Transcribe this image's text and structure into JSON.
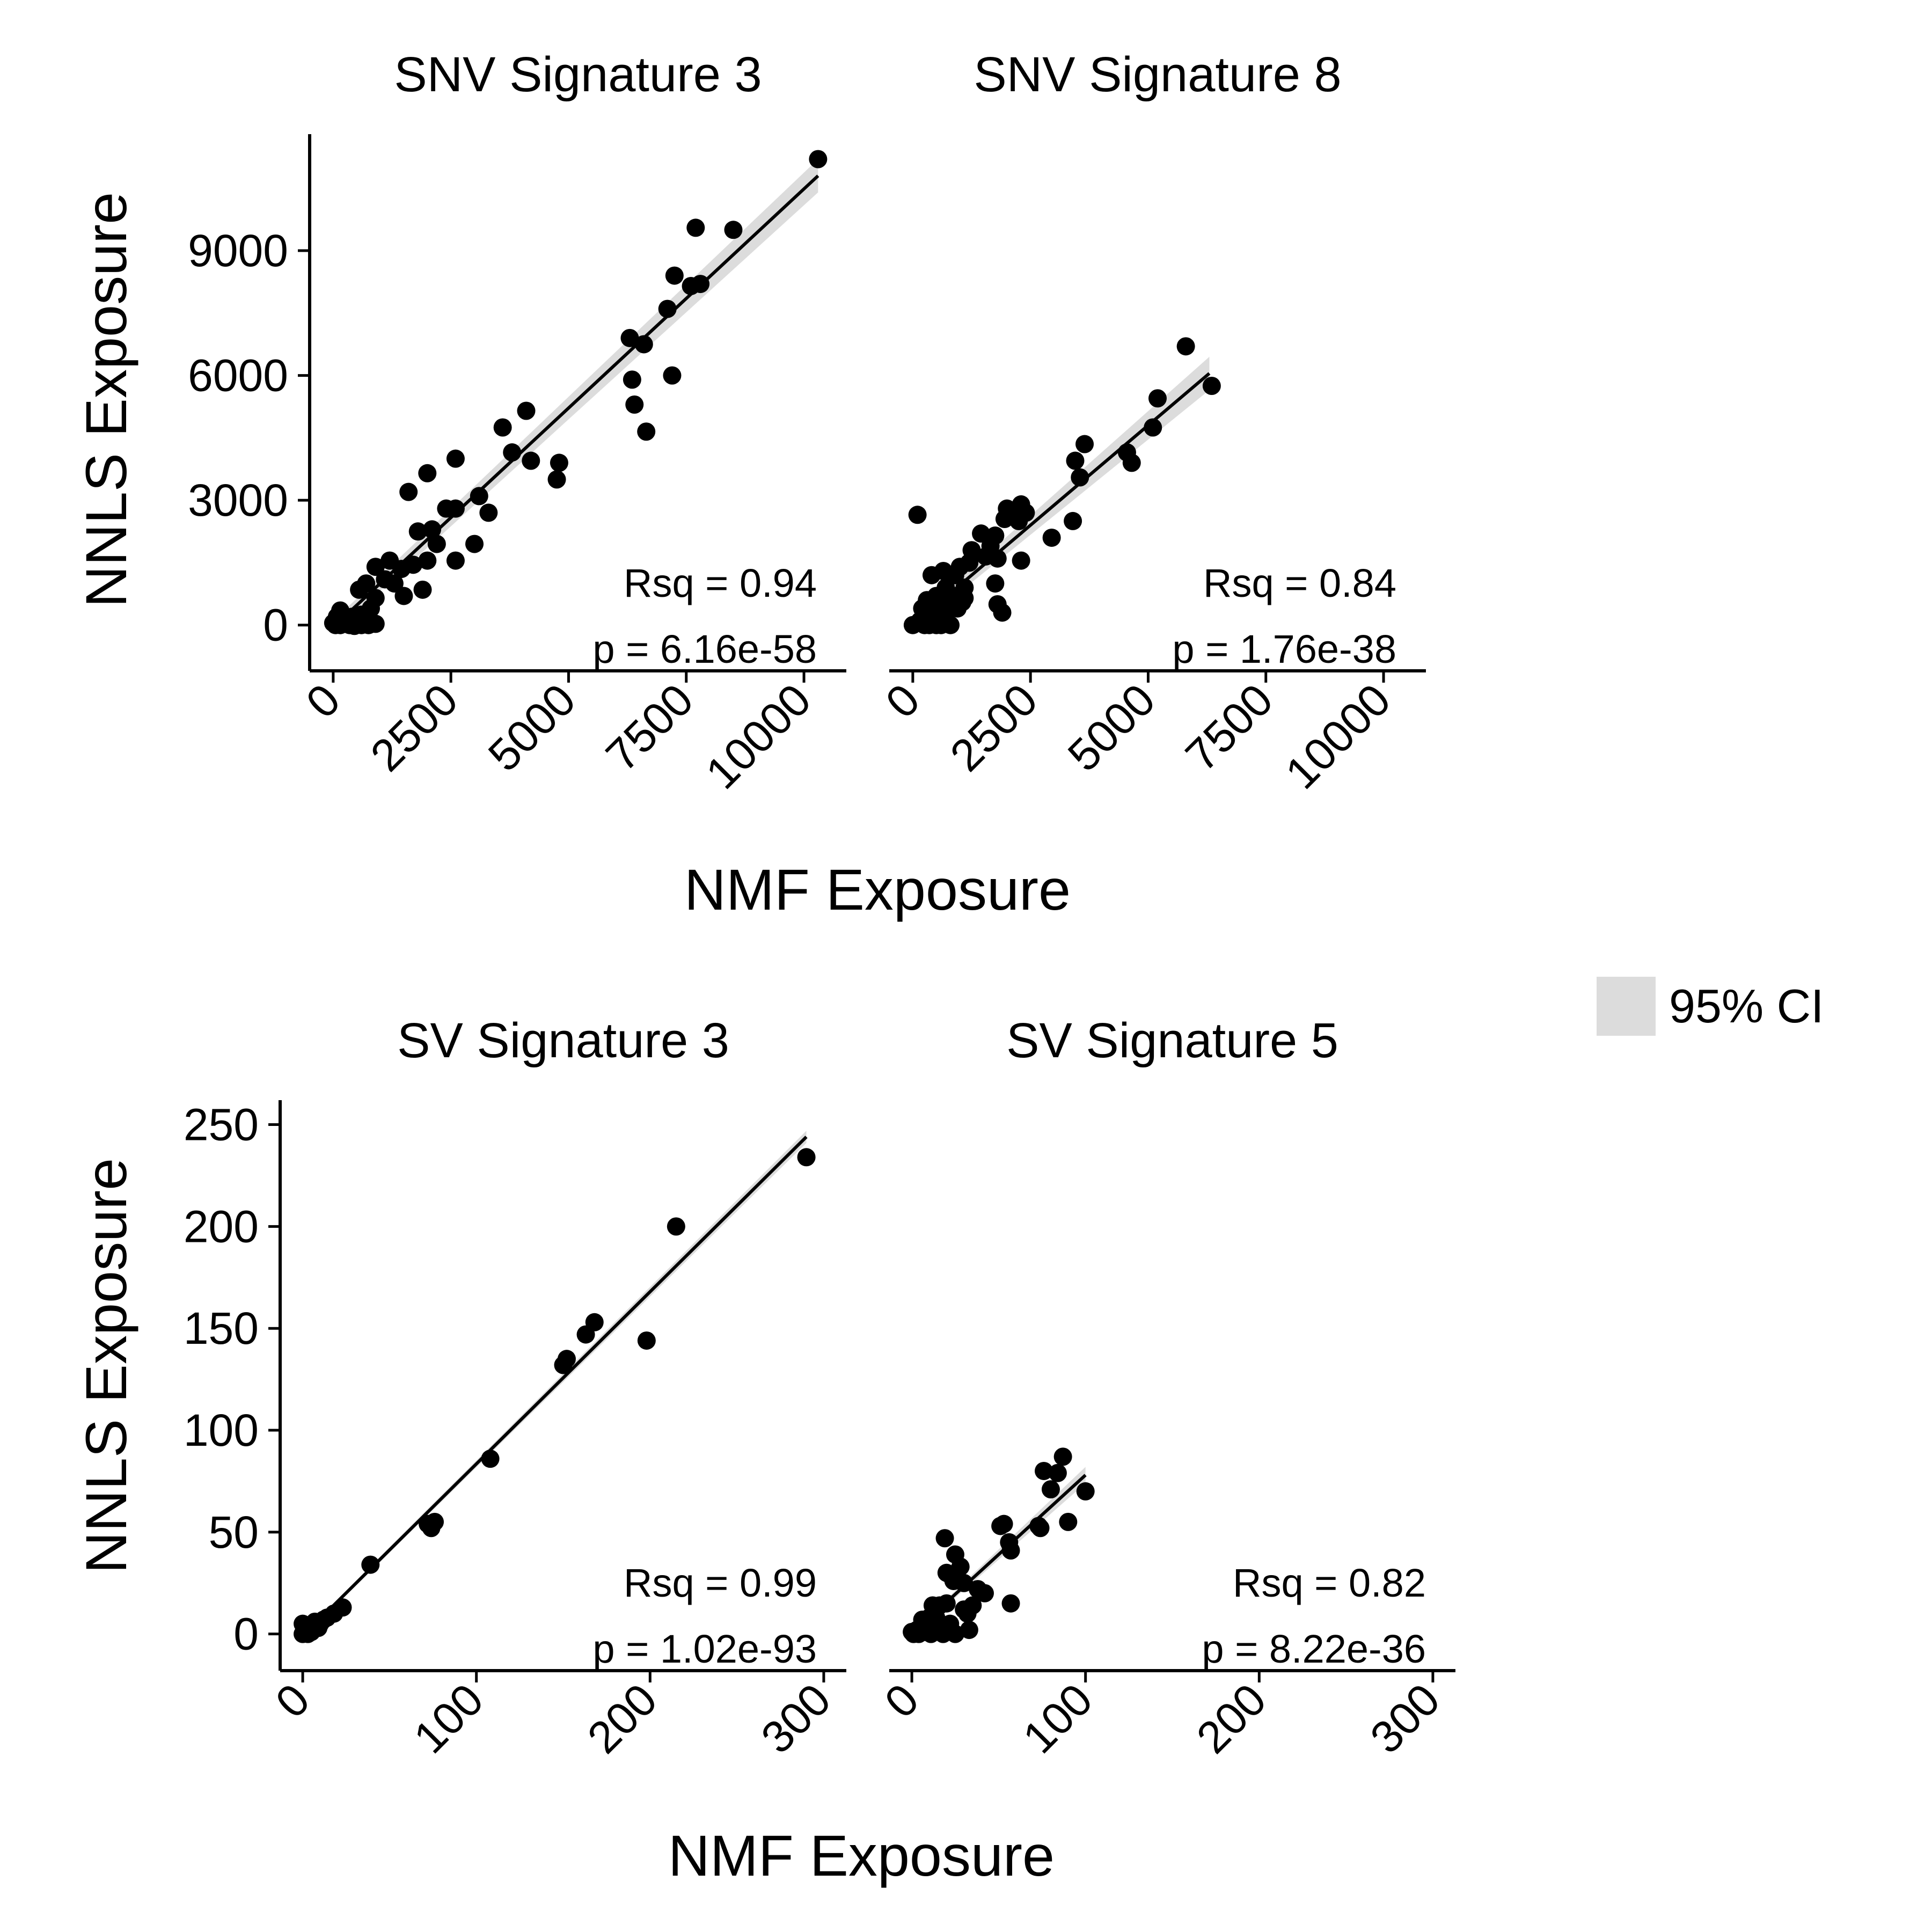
{
  "colors": {
    "background": "#ffffff",
    "point": "#000000",
    "line": "#000000",
    "ci_band": "#dcdcdc",
    "axis": "#000000"
  },
  "legend": {
    "label": "95% CI",
    "color": "#dcdcdc",
    "placement": "right"
  },
  "rows": [
    {
      "xlabel": "NMF Exposure",
      "ylabel": "NNLS Exposure"
    },
    {
      "xlabel": "NMF Exposure",
      "ylabel": "NNLS Exposure"
    }
  ],
  "chart_data": [
    {
      "type": "scatter",
      "title": "SNV Signature 3",
      "xlabel": "NMF Exposure",
      "ylabel": "NNLS Exposure",
      "xlim": [
        -500,
        10900
      ],
      "ylim": [
        -1100,
        11800
      ],
      "xticks": [
        0,
        2500,
        5000,
        7500,
        10000
      ],
      "xtick_labels": [
        "0",
        "2500",
        "5000",
        "7500",
        "10000"
      ],
      "yticks": [
        0,
        3000,
        6000,
        9000
      ],
      "ytick_labels": [
        "0",
        "3000",
        "6000",
        "9000"
      ],
      "show_y_axis": true,
      "fit": {
        "x": [
          0,
          10300
        ],
        "y": [
          -50,
          10800
        ]
      },
      "ci_halfwidth": [
        150,
        400
      ],
      "stats": {
        "rsq": "Rsq = 0.94",
        "p": "p = 6.16e-58"
      },
      "points": [
        [
          10300,
          11200
        ],
        [
          7700,
          9550
        ],
        [
          8500,
          9500
        ],
        [
          7250,
          8400
        ],
        [
          7600,
          8150
        ],
        [
          7800,
          8200
        ],
        [
          7100,
          7600
        ],
        [
          6300,
          6900
        ],
        [
          6600,
          6750
        ],
        [
          7200,
          6000
        ],
        [
          6350,
          5900
        ],
        [
          6400,
          5300
        ],
        [
          6650,
          4650
        ],
        [
          4100,
          5150
        ],
        [
          3600,
          4750
        ],
        [
          3800,
          4150
        ],
        [
          4200,
          3950
        ],
        [
          4800,
          3900
        ],
        [
          4750,
          3500
        ],
        [
          2600,
          4000
        ],
        [
          2000,
          3650
        ],
        [
          1600,
          3200
        ],
        [
          3100,
          3100
        ],
        [
          3300,
          2700
        ],
        [
          2400,
          2800
        ],
        [
          2600,
          2800
        ],
        [
          2100,
          2300
        ],
        [
          1800,
          2250
        ],
        [
          2200,
          1950
        ],
        [
          3000,
          1950
        ],
        [
          2000,
          1550
        ],
        [
          2600,
          1550
        ],
        [
          1700,
          1450
        ],
        [
          1450,
          1350
        ],
        [
          1200,
          1550
        ],
        [
          900,
          1400
        ],
        [
          1100,
          1100
        ],
        [
          700,
          1000
        ],
        [
          1300,
          1000
        ],
        [
          1500,
          700
        ],
        [
          1900,
          850
        ],
        [
          550,
          850
        ],
        [
          900,
          650
        ],
        [
          800,
          400
        ],
        [
          600,
          250
        ],
        [
          400,
          200
        ],
        [
          150,
          350
        ],
        [
          80,
          200
        ],
        [
          250,
          100
        ],
        [
          700,
          150
        ],
        [
          300,
          50
        ],
        [
          100,
          20
        ],
        [
          500,
          60
        ],
        [
          50,
          0
        ],
        [
          0,
          50
        ],
        [
          150,
          0
        ],
        [
          350,
          0
        ],
        [
          450,
          -20
        ],
        [
          600,
          0
        ],
        [
          750,
          0
        ],
        [
          900,
          30
        ]
      ]
    },
    {
      "type": "scatter",
      "title": "SNV Signature 8",
      "xlabel": "NMF Exposure",
      "ylabel": "NNLS Exposure",
      "xlim": [
        -500,
        10900
      ],
      "ylim": [
        -1100,
        11800
      ],
      "xticks": [
        0,
        2500,
        5000,
        7500,
        10000
      ],
      "xtick_labels": [
        "0",
        "2500",
        "5000",
        "7500",
        "10000"
      ],
      "yticks": [
        0,
        3000,
        6000,
        9000
      ],
      "ytick_labels": [],
      "show_y_axis": false,
      "fit": {
        "x": [
          0,
          6300
        ],
        "y": [
          0,
          6050
        ]
      },
      "ci_halfwidth": [
        120,
        400
      ],
      "stats": {
        "rsq": "Rsq = 0.84",
        "p": "p = 1.76e-38"
      },
      "points": [
        [
          5800,
          6700
        ],
        [
          6350,
          5750
        ],
        [
          5200,
          5450
        ],
        [
          5100,
          4750
        ],
        [
          3650,
          4350
        ],
        [
          3450,
          3950
        ],
        [
          3550,
          3550
        ],
        [
          4550,
          4150
        ],
        [
          4650,
          3900
        ],
        [
          3400,
          2500
        ],
        [
          2950,
          2100
        ],
        [
          2300,
          2900
        ],
        [
          2400,
          2700
        ],
        [
          2000,
          2800
        ],
        [
          2150,
          2750
        ],
        [
          2250,
          2500
        ],
        [
          1950,
          2550
        ],
        [
          1750,
          2150
        ],
        [
          1450,
          2200
        ],
        [
          1650,
          1900
        ],
        [
          1250,
          1800
        ],
        [
          1550,
          1650
        ],
        [
          1200,
          1500
        ],
        [
          1800,
          1600
        ],
        [
          2300,
          1550
        ],
        [
          100,
          2650
        ],
        [
          1750,
          1000
        ],
        [
          1800,
          500
        ],
        [
          1900,
          300
        ],
        [
          1000,
          1400
        ],
        [
          900,
          1200
        ],
        [
          650,
          1300
        ],
        [
          1100,
          900
        ],
        [
          700,
          900
        ],
        [
          400,
          1200
        ],
        [
          850,
          700
        ],
        [
          500,
          700
        ],
        [
          300,
          600
        ],
        [
          600,
          500
        ],
        [
          200,
          400
        ],
        [
          400,
          300
        ],
        [
          700,
          300
        ],
        [
          150,
          100
        ],
        [
          0,
          0
        ],
        [
          250,
          0
        ],
        [
          500,
          0
        ],
        [
          800,
          0
        ],
        [
          1050,
          550
        ],
        [
          350,
          0
        ],
        [
          600,
          0
        ],
        [
          1100,
          650
        ],
        [
          950,
          400
        ]
      ]
    },
    {
      "type": "scatter",
      "title": "SV Signature 3",
      "xlabel": "NMF Exposure",
      "ylabel": "NNLS Exposure",
      "xlim": [
        -13,
        313
      ],
      "ylim": [
        -18,
        262
      ],
      "xticks": [
        0,
        100,
        200,
        300
      ],
      "xtick_labels": [
        "0",
        "100",
        "200",
        "300"
      ],
      "yticks": [
        0,
        50,
        100,
        150,
        200,
        250
      ],
      "ytick_labels": [
        "0",
        "50",
        "100",
        "150",
        "200",
        "250"
      ],
      "show_y_axis": true,
      "fit": {
        "x": [
          0,
          290
        ],
        "y": [
          -1,
          244
        ]
      },
      "ci_halfwidth": [
        1,
        3
      ],
      "stats": {
        "rsq": "Rsq = 0.99",
        "p": "p = 1.02e-93"
      },
      "points": [
        [
          290,
          234
        ],
        [
          215,
          200
        ],
        [
          198,
          144
        ],
        [
          168,
          153
        ],
        [
          163,
          147
        ],
        [
          150,
          132
        ],
        [
          152,
          135
        ],
        [
          108,
          86
        ],
        [
          76,
          55
        ],
        [
          74,
          52
        ],
        [
          72,
          54
        ],
        [
          39,
          34
        ],
        [
          23,
          13
        ],
        [
          18,
          10
        ],
        [
          14,
          8
        ],
        [
          10,
          5
        ],
        [
          8,
          4
        ],
        [
          6,
          3
        ],
        [
          4,
          2
        ],
        [
          2,
          1
        ],
        [
          0,
          0
        ],
        [
          0,
          5
        ],
        [
          1,
          2
        ],
        [
          3,
          0
        ],
        [
          5,
          1
        ],
        [
          7,
          6
        ],
        [
          9,
          3
        ],
        [
          12,
          7
        ]
      ]
    },
    {
      "type": "scatter",
      "title": "SV Signature 5",
      "xlabel": "NMF Exposure",
      "ylabel": "NNLS Exposure",
      "xlim": [
        -13,
        313
      ],
      "ylim": [
        -18,
        262
      ],
      "xticks": [
        0,
        100,
        200,
        300
      ],
      "xtick_labels": [
        "0",
        "100",
        "200",
        "300"
      ],
      "yticks": [
        0,
        50,
        100,
        150,
        200,
        250
      ],
      "ytick_labels": [],
      "show_y_axis": false,
      "fit": {
        "x": [
          0,
          100
        ],
        "y": [
          0,
          78
        ]
      },
      "ci_halfwidth": [
        1,
        4
      ],
      "stats": {
        "rsq": "Rsq = 0.82",
        "p": "p = 8.22e-36"
      },
      "points": [
        [
          87,
          87
        ],
        [
          76,
          80
        ],
        [
          84,
          79
        ],
        [
          80,
          71
        ],
        [
          100,
          70
        ],
        [
          90,
          55
        ],
        [
          73,
          53
        ],
        [
          74,
          52
        ],
        [
          53,
          54
        ],
        [
          51,
          53
        ],
        [
          56,
          45
        ],
        [
          57,
          41
        ],
        [
          19,
          47
        ],
        [
          25,
          39
        ],
        [
          28,
          33
        ],
        [
          20,
          30
        ],
        [
          22,
          29
        ],
        [
          24,
          26
        ],
        [
          30,
          25
        ],
        [
          38,
          22
        ],
        [
          42,
          20
        ],
        [
          57,
          15
        ],
        [
          35,
          14
        ],
        [
          30,
          12
        ],
        [
          20,
          15
        ],
        [
          16,
          14
        ],
        [
          12,
          14
        ],
        [
          32,
          10
        ],
        [
          10,
          8
        ],
        [
          8,
          5
        ],
        [
          5,
          3
        ],
        [
          3,
          2
        ],
        [
          1,
          0
        ],
        [
          0,
          1
        ],
        [
          6,
          7
        ],
        [
          12,
          5
        ],
        [
          15,
          3
        ],
        [
          18,
          0
        ],
        [
          25,
          0
        ],
        [
          33,
          2
        ],
        [
          11,
          0
        ],
        [
          4,
          0
        ],
        [
          7,
          1
        ],
        [
          22,
          5
        ],
        [
          9,
          3
        ],
        [
          14,
          8
        ]
      ]
    }
  ]
}
